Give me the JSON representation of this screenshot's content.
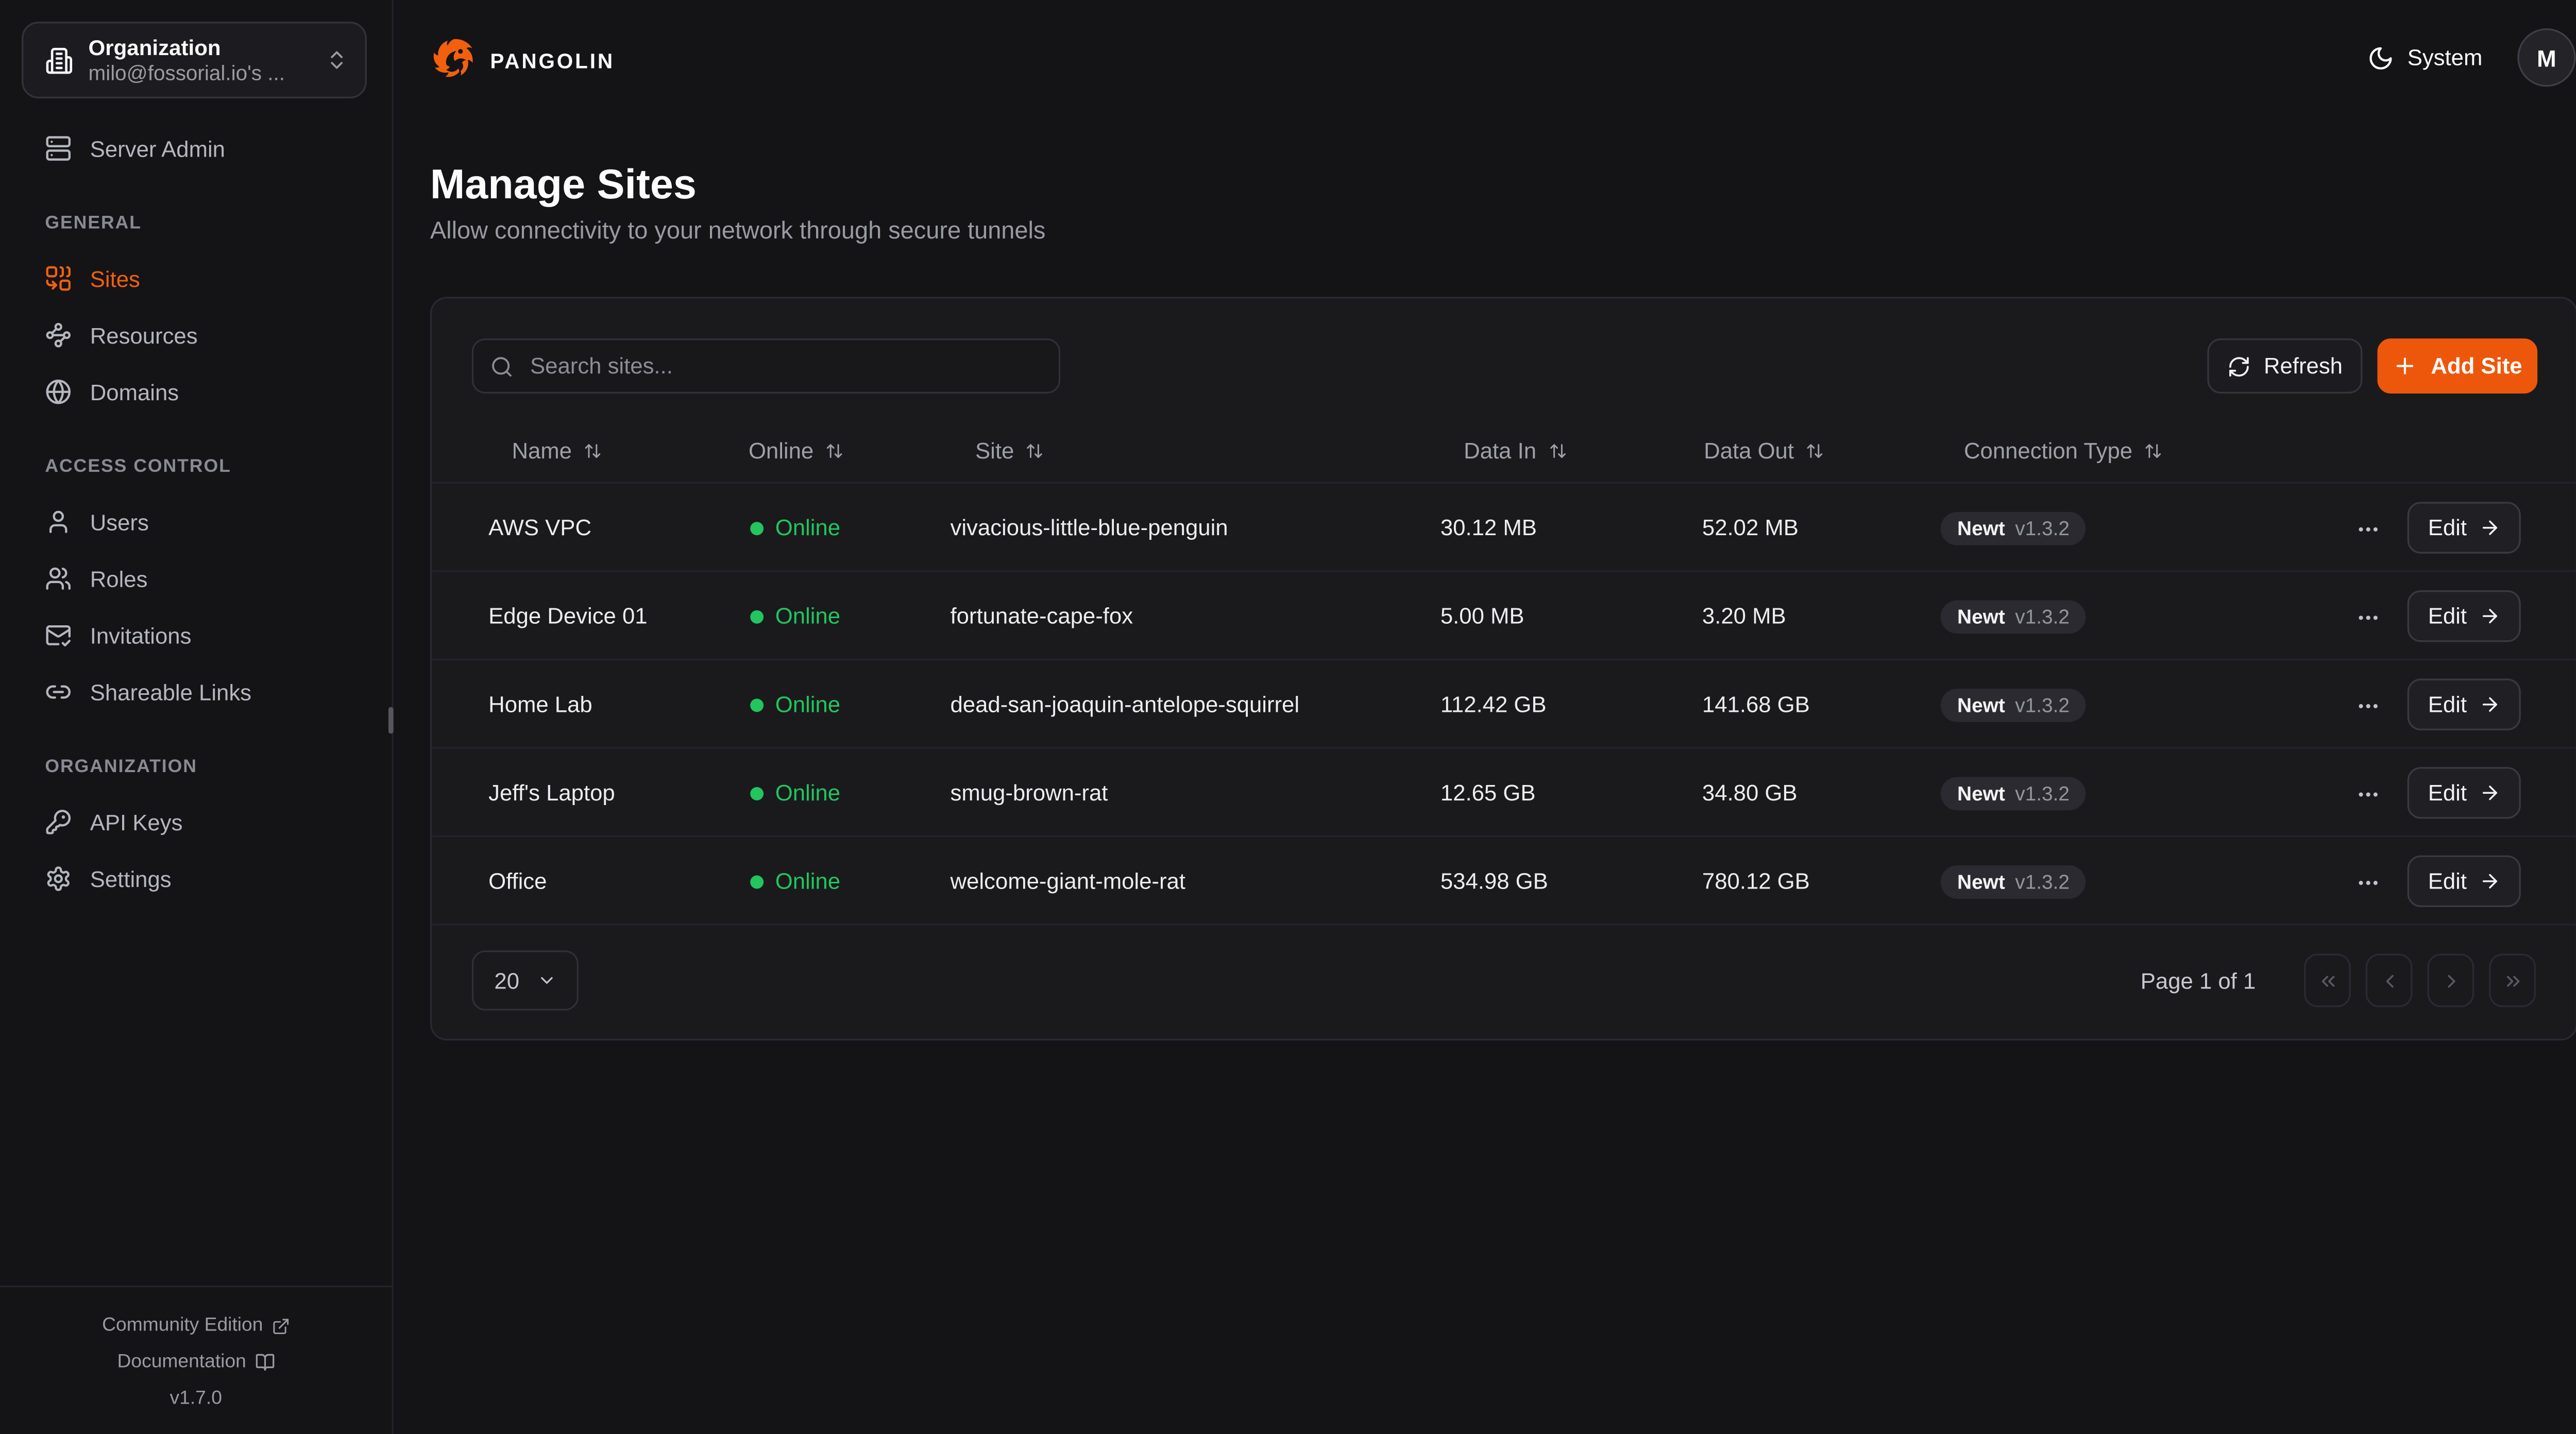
{
  "header": {
    "brand": "PANGOLIN",
    "theme_label": "System",
    "avatar_initial": "M"
  },
  "sidebar": {
    "org_selector": {
      "label": "Organization",
      "value": "milo@fossorial.io's ...",
      "icon": "building-icon"
    },
    "server_admin": {
      "label": "Server Admin",
      "icon": "server-icon"
    },
    "sections": [
      {
        "label": "GENERAL",
        "items": [
          {
            "label": "Sites",
            "icon": "combine-icon",
            "active": true
          },
          {
            "label": "Resources",
            "icon": "waypoints-icon",
            "active": false
          },
          {
            "label": "Domains",
            "icon": "globe-icon",
            "active": false
          }
        ]
      },
      {
        "label": "ACCESS CONTROL",
        "items": [
          {
            "label": "Users",
            "icon": "user-icon",
            "active": false
          },
          {
            "label": "Roles",
            "icon": "users-icon",
            "active": false
          },
          {
            "label": "Invitations",
            "icon": "mail-check-icon",
            "active": false
          },
          {
            "label": "Shareable Links",
            "icon": "link-icon",
            "active": false
          }
        ]
      },
      {
        "label": "ORGANIZATION",
        "items": [
          {
            "label": "API Keys",
            "icon": "key-icon",
            "active": false
          },
          {
            "label": "Settings",
            "icon": "gear-icon",
            "active": false
          }
        ]
      }
    ],
    "footer": {
      "community": "Community Edition",
      "documentation": "Documentation",
      "version": "v1.7.0"
    }
  },
  "page": {
    "title": "Manage Sites",
    "subtitle": "Allow connectivity to your network through secure tunnels"
  },
  "toolbar": {
    "search_placeholder": "Search sites...",
    "refresh_label": "Refresh",
    "add_site_label": "Add Site"
  },
  "table": {
    "columns": [
      {
        "id": "name",
        "label": "Name",
        "sortable": true
      },
      {
        "id": "online",
        "label": "Online",
        "sortable": true
      },
      {
        "id": "site",
        "label": "Site",
        "sortable": true
      },
      {
        "id": "data_in",
        "label": "Data In",
        "sortable": true
      },
      {
        "id": "data_out",
        "label": "Data Out",
        "sortable": true
      },
      {
        "id": "connection",
        "label": "Connection Type",
        "sortable": true
      }
    ],
    "row_action_label": "Edit",
    "rows": [
      {
        "name": "AWS VPC",
        "status": "Online",
        "site": "vivacious-little-blue-penguin",
        "data_in": "30.12 MB",
        "data_out": "52.02 MB",
        "connection": {
          "type": "Newt",
          "version": "v1.3.2"
        }
      },
      {
        "name": "Edge Device 01",
        "status": "Online",
        "site": "fortunate-cape-fox",
        "data_in": "5.00 MB",
        "data_out": "3.20 MB",
        "connection": {
          "type": "Newt",
          "version": "v1.3.2"
        }
      },
      {
        "name": "Home Lab",
        "status": "Online",
        "site": "dead-san-joaquin-antelope-squirrel",
        "data_in": "112.42 GB",
        "data_out": "141.68 GB",
        "connection": {
          "type": "Newt",
          "version": "v1.3.2"
        }
      },
      {
        "name": "Jeff's Laptop",
        "status": "Online",
        "site": "smug-brown-rat",
        "data_in": "12.65 GB",
        "data_out": "34.80 GB",
        "connection": {
          "type": "Newt",
          "version": "v1.3.2"
        }
      },
      {
        "name": "Office",
        "status": "Online",
        "site": "welcome-giant-mole-rat",
        "data_in": "534.98 GB",
        "data_out": "780.12 GB",
        "connection": {
          "type": "Newt",
          "version": "v1.3.2"
        }
      }
    ]
  },
  "pagination": {
    "page_size": "20",
    "status": "Page 1 of 1"
  },
  "colors": {
    "accent_orange": "#f2600e",
    "button_orange": "#ed570c",
    "status_green": "#22c55e"
  }
}
